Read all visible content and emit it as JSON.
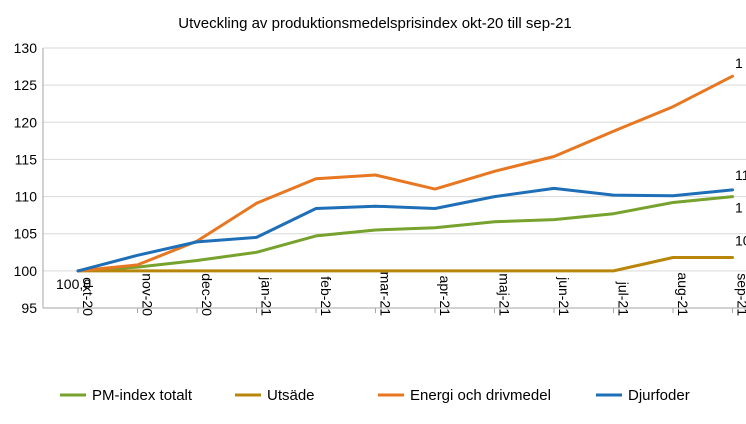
{
  "chart_data": {
    "type": "line",
    "title": "Utveckling av produktionsmedelsprisindex okt-20 till sep-21",
    "xlabel": "",
    "ylabel": "",
    "ylim": [
      95,
      130
    ],
    "yticks": [
      95,
      100,
      105,
      110,
      115,
      120,
      125,
      130
    ],
    "grid": true,
    "legend_position": "bottom",
    "categories": [
      "okt-20",
      "nov-20",
      "dec-20",
      "jan-21",
      "feb-21",
      "mar-21",
      "apr-21",
      "maj-21",
      "jun-21",
      "jul-21",
      "aug-21",
      "sep-21"
    ],
    "series": [
      {
        "name": "PM-index totalt",
        "color": "#77a22d",
        "values": [
          100.0,
          100.5,
          101.4,
          102.5,
          104.7,
          105.5,
          105.8,
          106.6,
          106.9,
          107.7,
          109.2,
          110.0
        ],
        "end_label": "1"
      },
      {
        "name": "Utsäde",
        "color": "#b8860b",
        "values": [
          100.0,
          100.0,
          100.0,
          100.0,
          100.0,
          100.0,
          100.0,
          100.0,
          100.0,
          100.0,
          101.8,
          101.8
        ],
        "end_label": "10"
      },
      {
        "name": "Energi och drivmedel",
        "color": "#e87722",
        "values": [
          100.0,
          100.8,
          104.0,
          109.1,
          112.4,
          112.9,
          111.0,
          113.4,
          115.4,
          118.8,
          122.1,
          126.2
        ],
        "end_label": "1"
      },
      {
        "name": "Djurfoder",
        "color": "#1f6fb8",
        "values": [
          100.0,
          102.1,
          103.9,
          104.5,
          108.4,
          108.7,
          108.4,
          110.0,
          111.1,
          110.2,
          110.1,
          110.9
        ],
        "end_label": "11"
      }
    ],
    "annotations": [
      {
        "text": "100,0",
        "category": "okt-20",
        "value": 100.0
      }
    ]
  }
}
